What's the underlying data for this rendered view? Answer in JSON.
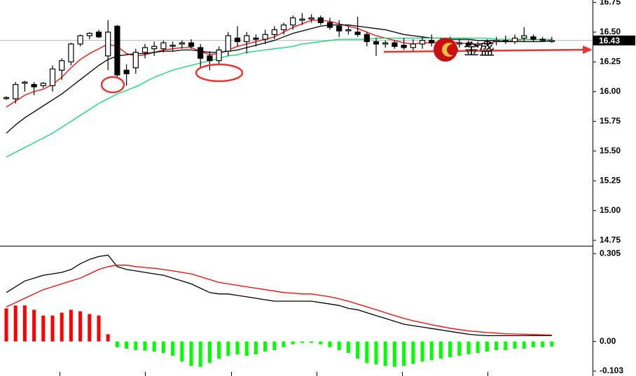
{
  "chart_data": [
    {
      "type": "candlestick",
      "watermark": "金盛",
      "last_price": 16.43,
      "ylim": [
        14.71,
        16.77
      ],
      "yticks": [
        16.75,
        {
          "value": 16.5,
          "label": "16.50"
        },
        16.25,
        {
          "value": 16,
          "label": "16.00"
        },
        15.75,
        {
          "value": 15.5,
          "label": "15.50"
        },
        15.25,
        {
          "value": 15,
          "label": "15.00"
        },
        14.75
      ],
      "up_color": "#ffffff",
      "down_color": "#000000",
      "ohlc": [
        [
          15.95,
          15.96,
          15.93,
          15.95
        ],
        [
          15.94,
          16.08,
          15.9,
          16.06
        ],
        [
          16.07,
          16.09,
          16.0,
          16.08
        ],
        [
          16.06,
          16.08,
          15.97,
          16.04
        ],
        [
          16.05,
          16.08,
          16.03,
          16.07
        ],
        [
          16.05,
          16.22,
          16.0,
          16.19
        ],
        [
          16.18,
          16.28,
          16.1,
          16.26
        ],
        [
          16.25,
          16.41,
          16.22,
          16.4
        ],
        [
          16.4,
          16.48,
          16.38,
          16.47
        ],
        [
          16.47,
          16.5,
          16.44,
          16.49
        ],
        [
          16.5,
          16.52,
          16.45,
          16.46
        ],
        [
          16.3,
          16.6,
          16.18,
          16.5
        ],
        [
          16.55,
          16.56,
          16.12,
          16.14
        ],
        [
          16.18,
          16.23,
          16.05,
          16.15
        ],
        [
          16.2,
          16.36,
          16.15,
          16.33
        ],
        [
          16.33,
          16.4,
          16.28,
          16.37
        ],
        [
          16.36,
          16.42,
          16.3,
          16.38
        ],
        [
          16.36,
          16.43,
          16.33,
          16.41
        ],
        [
          16.39,
          16.42,
          16.34,
          16.39
        ],
        [
          16.4,
          16.43,
          16.36,
          16.41
        ],
        [
          16.41,
          16.44,
          16.36,
          16.38
        ],
        [
          16.37,
          16.4,
          16.2,
          16.28
        ],
        [
          16.3,
          16.34,
          16.18,
          16.26
        ],
        [
          16.26,
          16.38,
          16.22,
          16.35
        ],
        [
          16.34,
          16.5,
          16.3,
          16.47
        ],
        [
          16.45,
          16.55,
          16.38,
          16.42
        ],
        [
          16.42,
          16.5,
          16.32,
          16.47
        ],
        [
          16.45,
          16.48,
          16.38,
          16.44
        ],
        [
          16.44,
          16.52,
          16.4,
          16.48
        ],
        [
          16.48,
          16.55,
          16.44,
          16.52
        ],
        [
          16.52,
          16.58,
          16.48,
          16.56
        ],
        [
          16.56,
          16.64,
          16.52,
          16.62
        ],
        [
          16.6,
          16.66,
          16.56,
          16.61
        ],
        [
          16.61,
          16.65,
          16.58,
          16.62
        ],
        [
          16.62,
          16.64,
          16.56,
          16.58
        ],
        [
          16.58,
          16.62,
          16.52,
          16.54
        ],
        [
          16.55,
          16.6,
          16.46,
          16.51
        ],
        [
          16.52,
          16.55,
          16.48,
          16.52
        ],
        [
          16.5,
          16.63,
          16.46,
          16.48
        ],
        [
          16.48,
          16.5,
          16.38,
          16.42
        ],
        [
          16.42,
          16.45,
          16.3,
          16.4
        ],
        [
          16.4,
          16.43,
          16.37,
          16.41
        ],
        [
          16.41,
          16.43,
          16.36,
          16.38
        ],
        [
          16.39,
          16.45,
          16.35,
          16.37
        ],
        [
          16.37,
          16.44,
          16.34,
          16.4
        ],
        [
          16.4,
          16.46,
          16.36,
          16.43
        ],
        [
          16.43,
          16.48,
          16.38,
          16.41
        ],
        [
          16.41,
          16.45,
          16.37,
          16.42
        ],
        [
          16.42,
          16.46,
          16.38,
          16.4
        ],
        [
          16.4,
          16.44,
          16.37,
          16.41
        ],
        [
          16.41,
          16.43,
          16.38,
          16.39
        ],
        [
          16.39,
          16.42,
          16.37,
          16.4
        ],
        [
          16.4,
          16.44,
          16.38,
          16.42
        ],
        [
          16.42,
          16.46,
          16.39,
          16.43
        ],
        [
          16.43,
          16.47,
          16.4,
          16.42
        ],
        [
          16.42,
          16.48,
          16.4,
          16.45
        ],
        [
          16.45,
          16.54,
          16.42,
          16.47
        ],
        [
          16.46,
          16.48,
          16.42,
          16.44
        ],
        [
          16.44,
          16.46,
          16.42,
          16.43
        ],
        [
          16.42,
          16.46,
          16.41,
          16.43
        ]
      ],
      "lines": [
        {
          "color": "#ff0000",
          "values": [
            15.87,
            15.92,
            15.97,
            16.0,
            16.02,
            16.06,
            16.12,
            16.2,
            16.27,
            16.32,
            16.36,
            16.4,
            16.38,
            16.32,
            16.3,
            16.31,
            16.33,
            16.35,
            16.36,
            16.37,
            16.37,
            16.34,
            16.31,
            16.32,
            16.35,
            16.38,
            16.4,
            16.42,
            16.44,
            16.46,
            16.5,
            16.54,
            16.57,
            16.6,
            16.6,
            16.59,
            16.57,
            16.55,
            16.53,
            16.5,
            16.47,
            16.45,
            16.43,
            16.41,
            16.4,
            16.41,
            16.41,
            16.42,
            16.42,
            16.41,
            16.4,
            16.4,
            16.41,
            16.42,
            16.42,
            16.43,
            16.44,
            16.44,
            16.44,
            16.44
          ]
        },
        {
          "color": "#000000",
          "values": [
            15.65,
            15.72,
            15.78,
            15.83,
            15.88,
            15.93,
            15.98,
            16.04,
            16.1,
            16.16,
            16.22,
            16.27,
            16.3,
            16.31,
            16.32,
            16.32,
            16.33,
            16.34,
            16.34,
            16.35,
            16.35,
            16.34,
            16.33,
            16.33,
            16.34,
            16.35,
            16.37,
            16.39,
            16.41,
            16.43,
            16.46,
            16.49,
            16.51,
            16.53,
            16.55,
            16.56,
            16.56,
            16.56,
            16.55,
            16.54,
            16.53,
            16.52,
            16.5,
            16.48,
            16.47,
            16.46,
            16.45,
            16.45,
            16.44,
            16.44,
            16.44,
            16.43,
            16.43,
            16.43,
            16.42,
            16.42,
            16.42,
            16.42,
            16.42,
            16.43
          ]
        },
        {
          "color": "#00e070",
          "values": [
            15.45,
            15.49,
            15.53,
            15.57,
            15.61,
            15.65,
            15.7,
            15.75,
            15.8,
            15.85,
            15.9,
            15.94,
            15.98,
            16.01,
            16.04,
            16.08,
            16.12,
            16.15,
            16.18,
            16.2,
            16.22,
            16.24,
            16.26,
            16.28,
            16.3,
            16.31,
            16.33,
            16.34,
            16.35,
            16.36,
            16.37,
            16.38,
            16.4,
            16.41,
            16.42,
            16.43,
            16.44,
            16.44,
            16.44,
            16.44,
            16.45,
            16.45,
            16.45,
            16.45,
            16.45,
            16.45,
            16.45,
            16.45,
            16.45,
            16.45,
            16.45,
            16.45,
            16.45,
            16.44,
            16.44,
            16.44,
            16.44,
            16.44,
            16.44,
            16.44
          ]
        }
      ]
    },
    {
      "type": "macd",
      "ylim": [
        -0.12,
        0.33
      ],
      "yticks": [
        0.305,
        {
          "value": 0,
          "label": "0.00"
        },
        -0.103
      ],
      "positive_color": "#ff0000",
      "negative_color": "#00ff00",
      "histogram": [
        0.115,
        0.125,
        0.125,
        0.11,
        0.09,
        0.09,
        0.1,
        0.11,
        0.105,
        0.095,
        0.09,
        0.025,
        -0.02,
        -0.025,
        -0.03,
        -0.032,
        -0.035,
        -0.04,
        -0.05,
        -0.07,
        -0.085,
        -0.088,
        -0.075,
        -0.06,
        -0.05,
        -0.045,
        -0.05,
        -0.045,
        -0.035,
        -0.03,
        -0.02,
        -0.01,
        -0.005,
        -0.005,
        -0.01,
        -0.02,
        -0.03,
        -0.04,
        -0.06,
        -0.075,
        -0.08,
        -0.085,
        -0.088,
        -0.085,
        -0.078,
        -0.07,
        -0.065,
        -0.06,
        -0.055,
        -0.05,
        -0.045,
        -0.04,
        -0.035,
        -0.03,
        -0.03,
        -0.025,
        -0.025,
        -0.02,
        -0.02,
        -0.018
      ],
      "lines": [
        {
          "color": "#000000",
          "values": [
            0.17,
            0.19,
            0.21,
            0.22,
            0.23,
            0.235,
            0.24,
            0.25,
            0.27,
            0.285,
            0.295,
            0.3,
            0.26,
            0.25,
            0.245,
            0.24,
            0.235,
            0.23,
            0.22,
            0.21,
            0.2,
            0.185,
            0.17,
            0.165,
            0.165,
            0.16,
            0.155,
            0.15,
            0.145,
            0.14,
            0.14,
            0.14,
            0.14,
            0.14,
            0.135,
            0.13,
            0.125,
            0.115,
            0.11,
            0.1,
            0.09,
            0.08,
            0.07,
            0.06,
            0.055,
            0.05,
            0.045,
            0.04,
            0.035,
            0.03,
            0.025,
            0.022,
            0.02,
            0.02,
            0.02,
            0.02,
            0.02,
            0.02,
            0.02,
            0.02
          ]
        },
        {
          "color": "#ff0000",
          "values": [
            0.12,
            0.135,
            0.15,
            0.165,
            0.18,
            0.19,
            0.2,
            0.21,
            0.22,
            0.235,
            0.25,
            0.26,
            0.265,
            0.265,
            0.26,
            0.257,
            0.254,
            0.25,
            0.245,
            0.24,
            0.235,
            0.225,
            0.215,
            0.205,
            0.2,
            0.195,
            0.19,
            0.185,
            0.18,
            0.175,
            0.17,
            0.168,
            0.165,
            0.165,
            0.16,
            0.155,
            0.148,
            0.14,
            0.13,
            0.12,
            0.11,
            0.1,
            0.09,
            0.08,
            0.072,
            0.065,
            0.058,
            0.052,
            0.046,
            0.041,
            0.037,
            0.034,
            0.031,
            0.029,
            0.027,
            0.026,
            0.025,
            0.024,
            0.023,
            0.022
          ]
        }
      ]
    }
  ]
}
